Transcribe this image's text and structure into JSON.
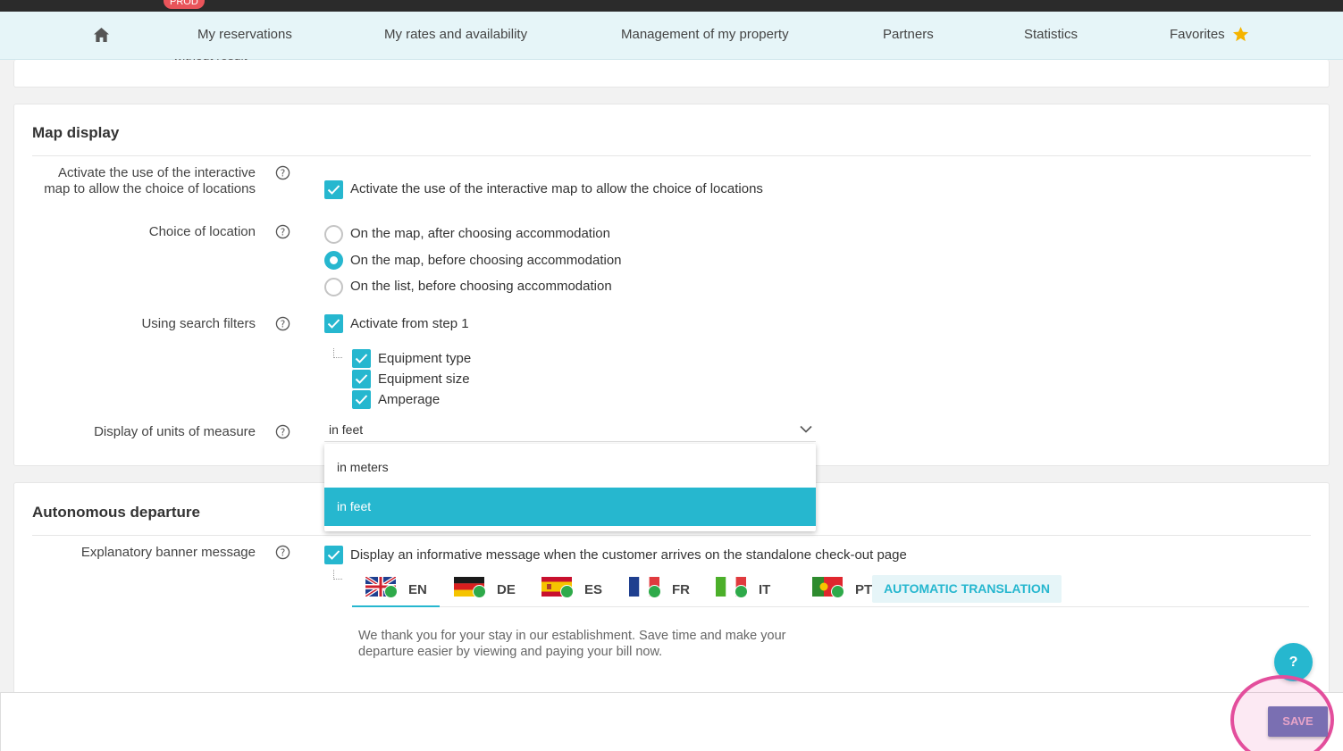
{
  "env_badge": "PROD",
  "nav": {
    "home_icon": "home-icon",
    "items": [
      {
        "label": "My reservations"
      },
      {
        "label": "My rates and availability"
      },
      {
        "label": "Management of my property"
      },
      {
        "label": "Partners"
      },
      {
        "label": "Statistics"
      },
      {
        "label": "Favorites"
      }
    ],
    "favorites_icon": "star-icon",
    "accent": "#f5b400"
  },
  "previous_section": {
    "cut_text": "without result"
  },
  "map_display": {
    "title": "Map display",
    "interactive_map": {
      "label": "Activate the use of the interactive map to allow the choice of locations",
      "checkbox_label": "Activate the use of the interactive map to allow the choice of locations",
      "checked": true
    },
    "choice_of_location": {
      "label": "Choice of location",
      "options": [
        {
          "label": "On the map, after choosing accommodation",
          "selected": false
        },
        {
          "label": "On the map, before choosing accommodation",
          "selected": true
        },
        {
          "label": "On the list, before choosing accommodation",
          "selected": false
        }
      ]
    },
    "search_filters": {
      "label": "Using search filters",
      "activate_label": "Activate from step 1",
      "sub_options": [
        {
          "label": "Equipment type",
          "checked": true
        },
        {
          "label": "Equipment size",
          "checked": true
        },
        {
          "label": "Amperage",
          "checked": true
        }
      ]
    },
    "units": {
      "label": "Display of units of measure",
      "value": "in feet",
      "options": [
        "in meters",
        "in feet"
      ],
      "selected_index": 1
    }
  },
  "autonomous_departure": {
    "title": "Autonomous departure",
    "banner": {
      "label": "Explanatory banner message",
      "checkbox_label": "Display an informative message when the customer arrives on the standalone check-out page",
      "checked": true
    },
    "languages": [
      {
        "code": "EN",
        "icon": "uk-flag-icon",
        "active": true
      },
      {
        "code": "DE",
        "icon": "germany-flag-icon",
        "active": false
      },
      {
        "code": "ES",
        "icon": "spain-flag-icon",
        "active": false
      },
      {
        "code": "FR",
        "icon": "france-flag-icon",
        "active": false
      },
      {
        "code": "IT",
        "icon": "italy-flag-icon",
        "active": false
      },
      {
        "code": "PT",
        "icon": "portugal-flag-icon",
        "active": false
      }
    ],
    "auto_translate_label": "AUTOMATIC TRANSLATION",
    "message": "We thank you for your stay in our establishment. Save time and make your departure easier by viewing and paying your bill now."
  },
  "help_fab": "?",
  "save_label": "SAVE",
  "colors": {
    "primary": "#26b7cf",
    "nav_bg": "#e6f5f8",
    "save": "#7a6fb2",
    "highlight": "#e34e9c"
  }
}
